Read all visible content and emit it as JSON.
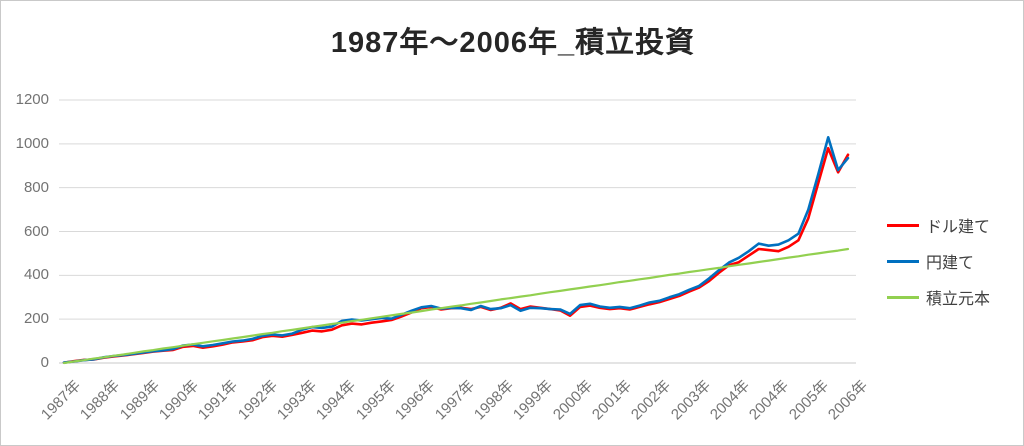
{
  "title": "1987年〜2006年_積立投資",
  "chart_data": {
    "type": "line",
    "title": "1987年〜2006年_積立投資",
    "xlabel": "",
    "ylabel": "",
    "ylim": [
      0,
      1200
    ],
    "y_ticks": [
      0,
      200,
      400,
      600,
      800,
      1000,
      1200
    ],
    "grid": true,
    "legend_position": "right",
    "x_tick_labels": [
      "1987年",
      "1988年",
      "1989年",
      "1990年",
      "1991年",
      "1992年",
      "1993年",
      "1994年",
      "1995年",
      "1996年",
      "1997年",
      "1998年",
      "1999年",
      "2000年",
      "2001年",
      "2002年",
      "2003年",
      "2004年",
      "2004年",
      "2005年",
      "2006年"
    ],
    "x_unit": "quarterly points, Jan 1987 → 2006",
    "series": [
      {
        "name": "ドル建て",
        "color": "#FF0000",
        "values": [
          2,
          8,
          14,
          16,
          24,
          30,
          34,
          40,
          46,
          52,
          56,
          60,
          74,
          78,
          70,
          76,
          84,
          94,
          98,
          104,
          118,
          124,
          120,
          128,
          138,
          148,
          144,
          152,
          172,
          180,
          176,
          184,
          190,
          196,
          212,
          230,
          250,
          256,
          244,
          250,
          252,
          246,
          256,
          242,
          252,
          272,
          246,
          258,
          252,
          246,
          240,
          216,
          256,
          262,
          252,
          246,
          250,
          244,
          256,
          268,
          278,
          292,
          306,
          326,
          344,
          374,
          412,
          446,
          460,
          490,
          520,
          515,
          510,
          530,
          560,
          660,
          820,
          980,
          870,
          950
        ]
      },
      {
        "name": "円建て",
        "color": "#0070C0",
        "values": [
          2,
          7,
          13,
          17,
          26,
          32,
          36,
          42,
          48,
          54,
          58,
          64,
          80,
          84,
          76,
          82,
          90,
          98,
          102,
          110,
          124,
          130,
          126,
          134,
          152,
          164,
          160,
          166,
          192,
          198,
          194,
          200,
          206,
          202,
          220,
          238,
          254,
          260,
          248,
          252,
          250,
          242,
          260,
          246,
          250,
          264,
          238,
          252,
          250,
          246,
          244,
          224,
          264,
          270,
          258,
          252,
          256,
          250,
          262,
          276,
          284,
          300,
          314,
          334,
          352,
          386,
          424,
          458,
          480,
          510,
          545,
          535,
          540,
          560,
          590,
          700,
          860,
          1030,
          880,
          935
        ]
      },
      {
        "name": "積立元本",
        "color": "#92D050",
        "values": [
          0,
          7,
          13,
          20,
          26,
          33,
          39,
          46,
          53,
          59,
          66,
          72,
          79,
          86,
          92,
          99,
          105,
          112,
          118,
          125,
          132,
          138,
          145,
          151,
          158,
          165,
          171,
          178,
          184,
          191,
          197,
          204,
          211,
          217,
          224,
          230,
          237,
          244,
          250,
          257,
          263,
          270,
          276,
          283,
          290,
          296,
          303,
          309,
          316,
          323,
          329,
          336,
          342,
          349,
          355,
          362,
          369,
          375,
          382,
          388,
          395,
          402,
          408,
          415,
          421,
          428,
          434,
          441,
          448,
          454,
          461,
          467,
          474,
          481,
          487,
          494,
          500,
          507,
          513,
          520
        ]
      }
    ]
  },
  "legend": {
    "items": [
      {
        "label": "ドル建て",
        "color": "#FF0000"
      },
      {
        "label": "円建て",
        "color": "#0070C0"
      },
      {
        "label": "積立元本",
        "color": "#92D050"
      }
    ]
  },
  "colors": {
    "gridline": "#d9d9d9",
    "axis_line": "#c9c9c9",
    "axis_label": "#737373",
    "title_text": "#262626",
    "legend_text": "#404040",
    "background": "#ffffff"
  }
}
